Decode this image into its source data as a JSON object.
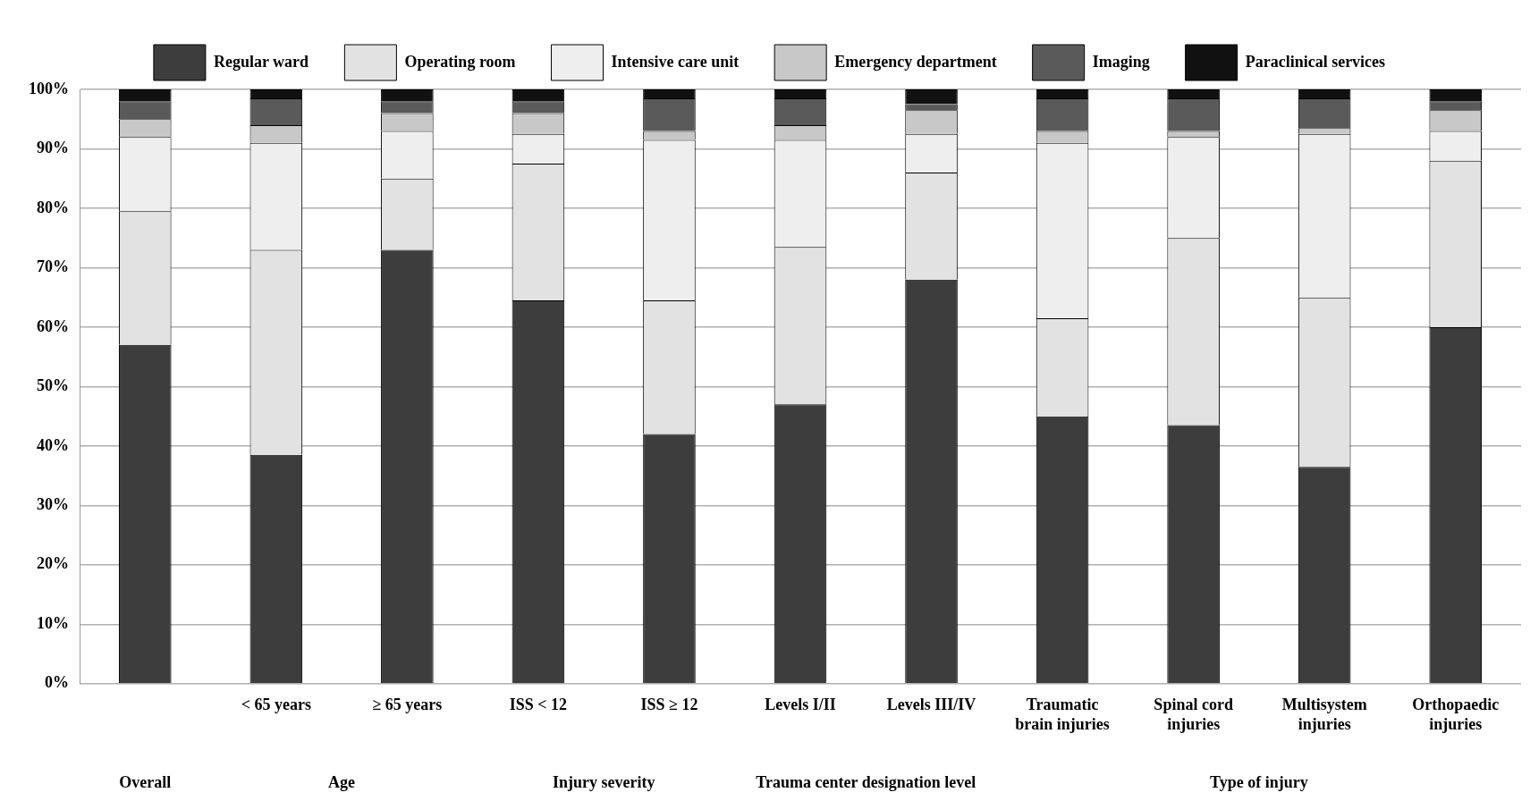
{
  "chart_data": {
    "type": "bar",
    "stacked": true,
    "categories": [
      null,
      "< 65 years",
      "≥ 65 years",
      "ISS < 12",
      "ISS ≥ 12",
      "Levels I/II",
      "Levels III/IV",
      "Traumatic brain injuries",
      "Spinal cord injuries",
      "Multisystem injuries",
      "Orthopaedic injuries"
    ],
    "series": [
      {
        "name": "Regular ward",
        "color": "#3d3d3d",
        "values": [
          57,
          38.5,
          73,
          64.5,
          42,
          47,
          68,
          45,
          43.5,
          36.5,
          60
        ]
      },
      {
        "name": "Operating room",
        "color": "#e2e2e2",
        "values": [
          22.5,
          34.5,
          12,
          23,
          22.5,
          26.5,
          18,
          16.5,
          31.5,
          28.5,
          28
        ]
      },
      {
        "name": "Intensive care unit",
        "color": "#eeeeee",
        "values": [
          12.5,
          18,
          8,
          5,
          27,
          18,
          6.5,
          29.5,
          17,
          27.5,
          5
        ]
      },
      {
        "name": "Emergency department",
        "color": "#c8c8c8",
        "values": [
          3,
          3,
          3,
          3.5,
          1.5,
          2.5,
          4,
          2,
          1,
          1,
          3.5
        ]
      },
      {
        "name": "Imaging",
        "color": "#5a5a5a",
        "values": [
          3,
          4.5,
          2,
          2,
          5.5,
          4.5,
          1,
          5.5,
          5.5,
          5,
          1.5
        ]
      },
      {
        "name": "Paraclinical services",
        "color": "#111111",
        "values": [
          2,
          1.5,
          2,
          2,
          1.5,
          1.5,
          2.5,
          1.5,
          1.5,
          1.5,
          2
        ]
      }
    ],
    "ylim": [
      0,
      100
    ],
    "yticks": [
      {
        "value": 0,
        "label": "0%"
      },
      {
        "value": 10,
        "label": "10%"
      },
      {
        "value": 20,
        "label": "20%"
      },
      {
        "value": 30,
        "label": "30%"
      },
      {
        "value": 40,
        "label": "40%"
      },
      {
        "value": 50,
        "label": "50%"
      },
      {
        "value": 60,
        "label": "60%"
      },
      {
        "value": 70,
        "label": "70%"
      },
      {
        "value": 80,
        "label": "80%"
      },
      {
        "value": 90,
        "label": "90%"
      },
      {
        "value": 100,
        "label": "100%"
      }
    ],
    "annotations": [
      "Overall",
      "Age",
      "Injury severity",
      "Trauma center designation level",
      "Type of injury"
    ],
    "grid": "y",
    "legend": "top"
  }
}
